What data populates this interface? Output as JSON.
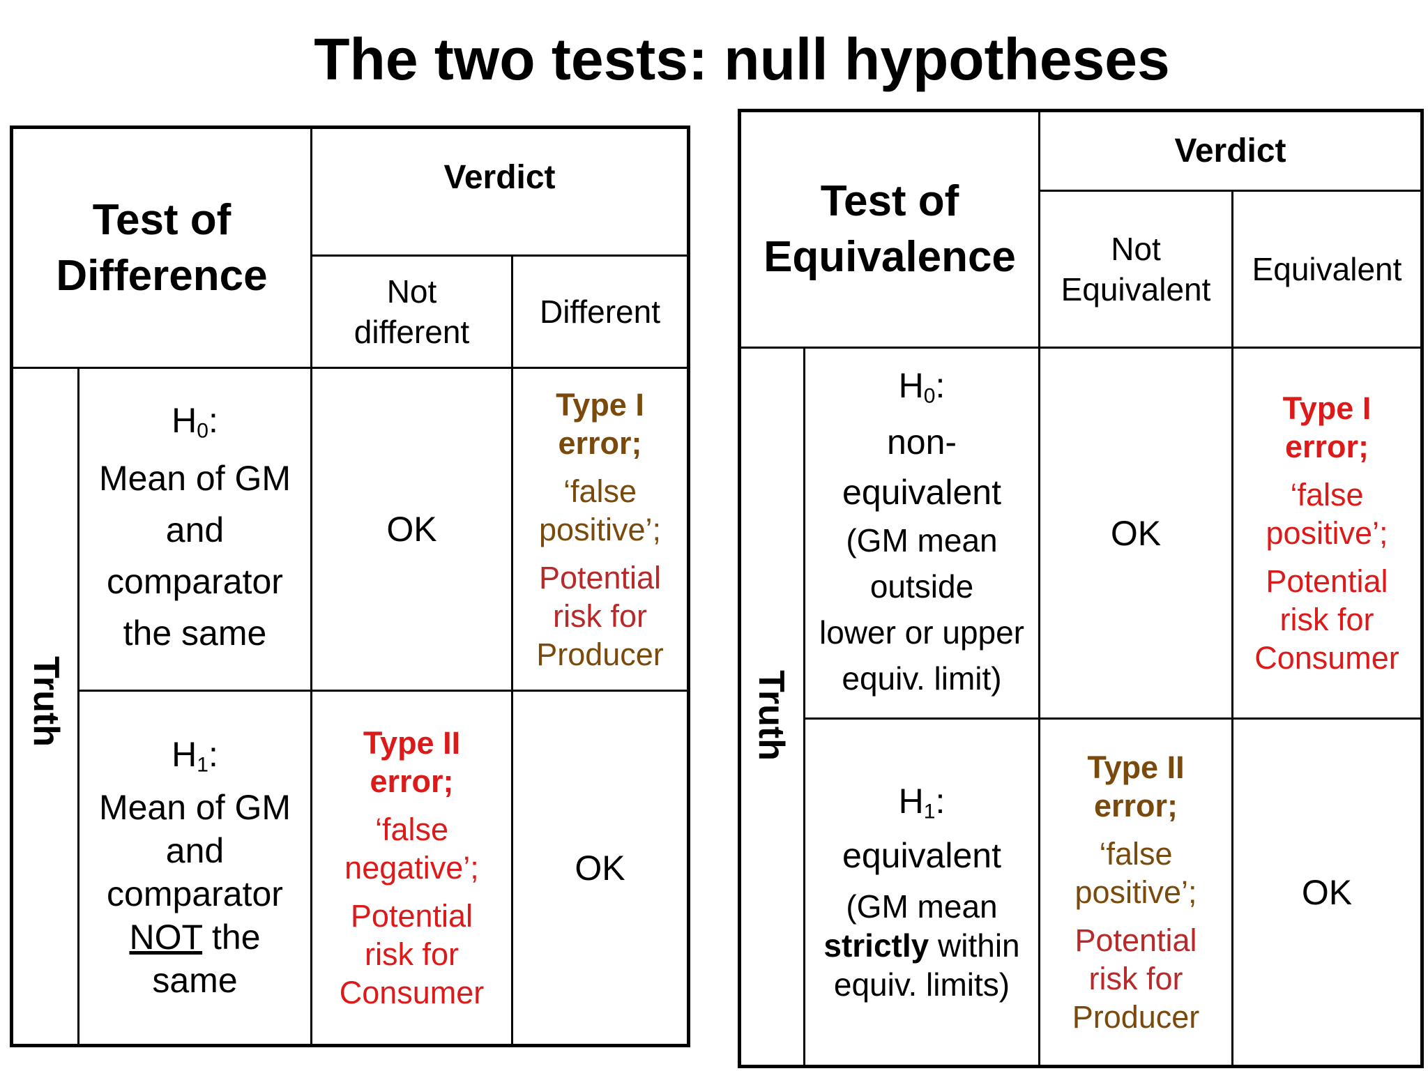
{
  "title": "The two tests: null hypotheses",
  "left": {
    "heading_line1": "Test of",
    "heading_line2": "Difference",
    "verdict": "Verdict",
    "col1_line1": "Not",
    "col1_line2": "different",
    "col2": "Different",
    "truth": "Truth",
    "h0_label": "H",
    "h0_sub": "0",
    "h0_colon": ":",
    "h0_desc": [
      "Mean of GM",
      "and",
      "comparator",
      "the same"
    ],
    "h1_label": "H",
    "h1_sub": "1",
    "h1_colon": ":",
    "h1_desc": [
      "Mean of GM",
      "and",
      "comparator"
    ],
    "h1_not": "NOT",
    "h1_the": " the",
    "h1_same": "same",
    "ok_h0": "OK",
    "ok_h1": "OK",
    "type1_title_l1": "Type I",
    "type1_title_l2": "error;",
    "type1_desc_l1": "‘false",
    "type1_desc_l2": "positive’;",
    "type1_risk_l1": "Potential",
    "type1_risk_l2": "risk for",
    "type1_risk_l3": "Producer",
    "type2_title_l1": "Type II",
    "type2_title_l2": "error;",
    "type2_desc_l1": "‘false",
    "type2_desc_l2": "negative’;",
    "type2_risk_l1": "Potential",
    "type2_risk_l2": "risk for",
    "type2_risk_l3": "Consumer"
  },
  "right": {
    "heading_line1": "Test of",
    "heading_line2": "Equivalence",
    "verdict": "Verdict",
    "col1_line1": "Not",
    "col1_line2": "Equivalent",
    "col2": "Equivalent",
    "truth": "Truth",
    "h0_label": "H",
    "h0_sub": "0",
    "h0_colon": ":",
    "h0_desc": [
      "non-",
      "equivalent"
    ],
    "h0_desc2": [
      "(GM mean",
      "outside",
      "lower or upper",
      "equiv. limit)"
    ],
    "h1_label": "H",
    "h1_sub": "1",
    "h1_colon": ":",
    "h1_desc": "equivalent",
    "h1_desc2_l1": "(GM mean",
    "h1_strictly": "strictly",
    "h1_within": " within",
    "h1_desc2_l3": "equiv. limits)",
    "ok_h0": "OK",
    "ok_h1": "OK",
    "type1_title_l1": "Type I",
    "type1_title_l2": "error;",
    "type1_desc_l1": "‘false",
    "type1_desc_l2": "positive’;",
    "type1_risk_l1": "Potential",
    "type1_risk_l2": "risk for",
    "type1_risk_l3": "Consumer",
    "type2_title_l1": "Type II",
    "type2_title_l2": "error;",
    "type2_desc_l1": "‘false",
    "type2_desc_l2": "positive’;",
    "type2_risk_l1": "Potential",
    "type2_risk_l2": "risk for",
    "type2_risk_l3": "Producer"
  },
  "colors": {
    "brown": "#7a4a0c",
    "red": "#dd1a1a",
    "dark_red": "#b82a2a"
  }
}
